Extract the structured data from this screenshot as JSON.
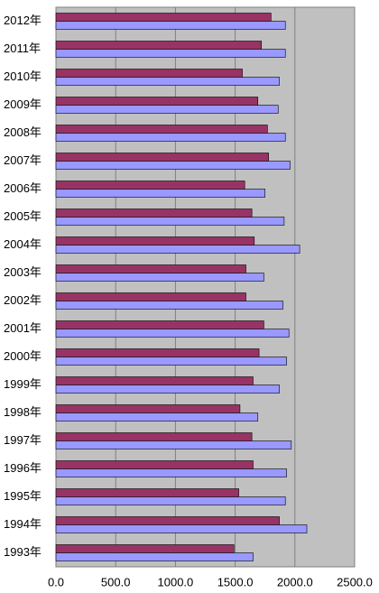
{
  "chart_data": {
    "type": "hbar",
    "categories": [
      "2012年",
      "2011年",
      "2010年",
      "2009年",
      "2008年",
      "2007年",
      "2006年",
      "2005年",
      "2004年",
      "2003年",
      "2002年",
      "2001年",
      "2000年",
      "1999年",
      "1998年",
      "1997年",
      "1996年",
      "1995年",
      "1994年",
      "1993年"
    ],
    "series": [
      {
        "color": "#993366",
        "values": [
          1800,
          1720,
          1560,
          1690,
          1770,
          1780,
          1580,
          1640,
          1660,
          1590,
          1590,
          1740,
          1700,
          1650,
          1540,
          1640,
          1650,
          1530,
          1870,
          1490
        ]
      },
      {
        "color": "#9999ff",
        "values": [
          1920,
          1920,
          1870,
          1860,
          1920,
          1960,
          1750,
          1910,
          2040,
          1740,
          1900,
          1950,
          1930,
          1870,
          1690,
          1970,
          1930,
          1920,
          2100,
          1650
        ]
      }
    ],
    "xlim": [
      0,
      2500
    ],
    "xticks": [
      {
        "value": 0,
        "label": "0.0"
      },
      {
        "value": 500,
        "label": "500.0"
      },
      {
        "value": 1000,
        "label": "1000.0"
      },
      {
        "value": 1500,
        "label": "1500.0"
      },
      {
        "value": 2000,
        "label": "2000.0"
      },
      {
        "value": 2500,
        "label": "2500.0"
      }
    ],
    "grid": true
  }
}
